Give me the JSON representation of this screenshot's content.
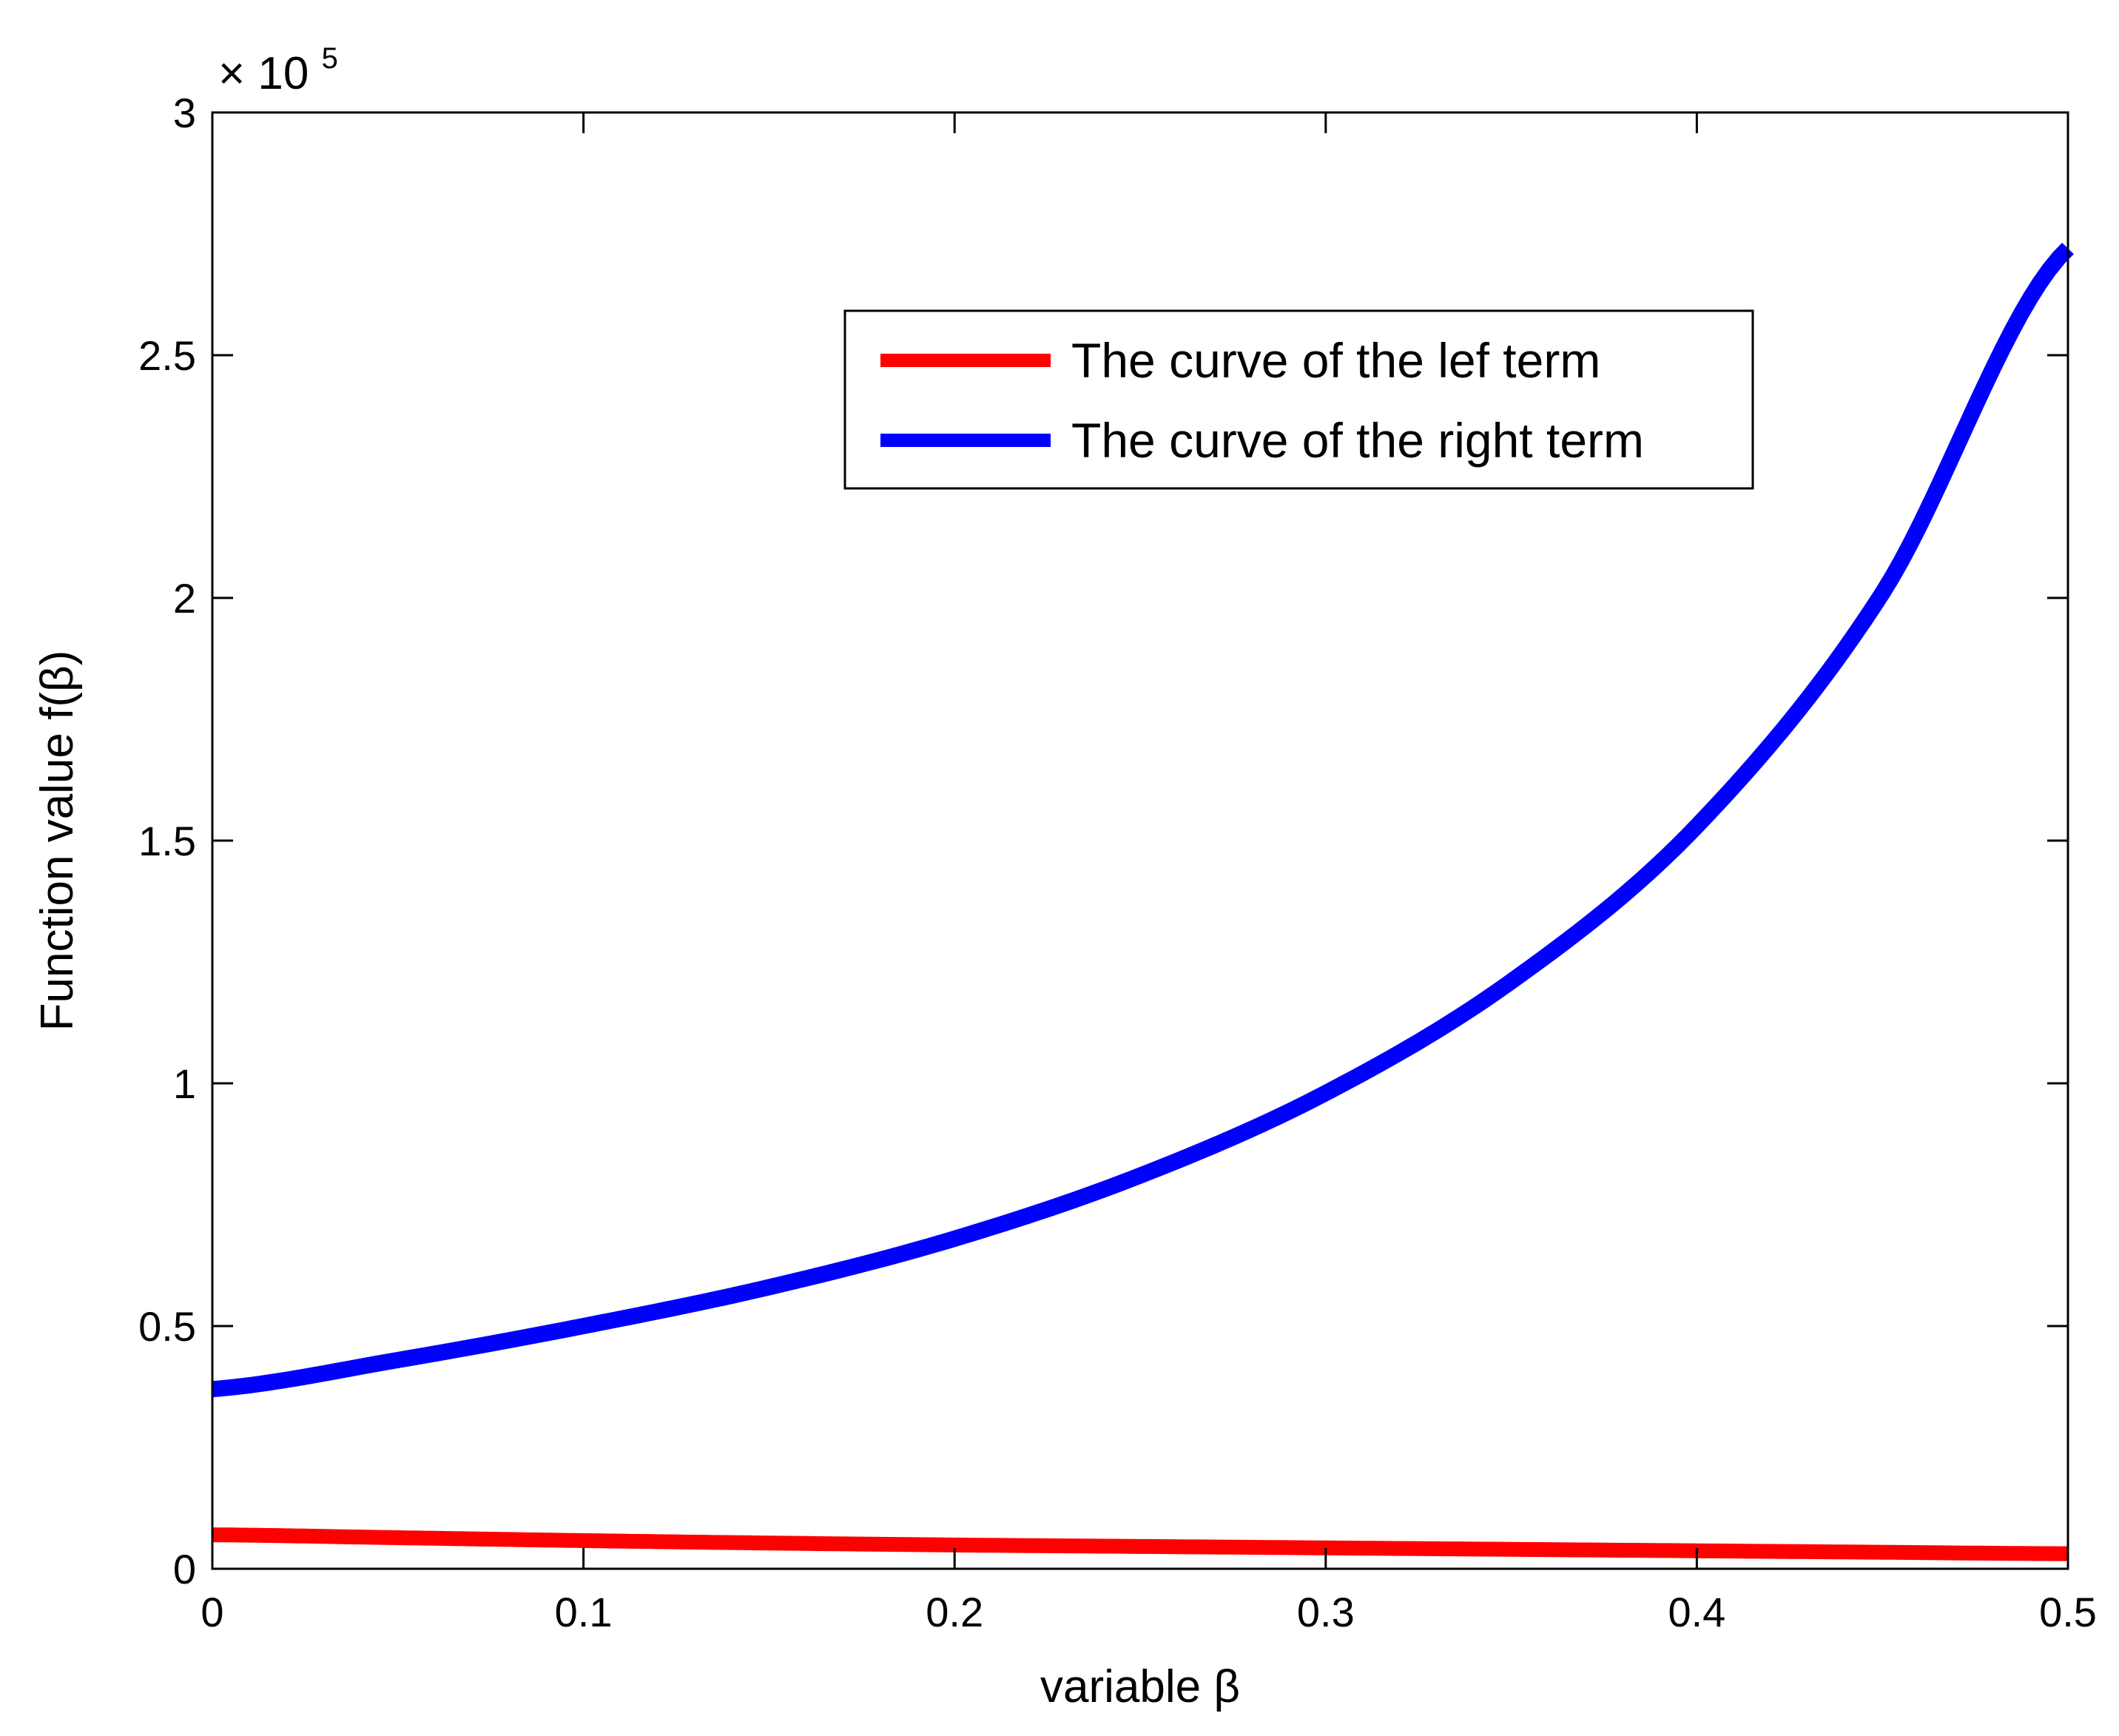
{
  "chart_data": {
    "type": "line",
    "title": "",
    "xlabel": "variable β",
    "ylabel": "Function value f(β)",
    "xlim": [
      0,
      0.5
    ],
    "ylim": [
      0,
      300000
    ],
    "x_ticks": [
      0,
      0.1,
      0.2,
      0.3,
      0.4,
      0.5
    ],
    "x_tick_labels": [
      "0",
      "0.1",
      "0.2",
      "0.3",
      "0.4",
      "0.5"
    ],
    "y_ticks": [
      0,
      50000,
      100000,
      150000,
      200000,
      250000,
      300000
    ],
    "y_tick_labels": [
      "0",
      "0.5",
      "1",
      "1.5",
      "2",
      "2.5",
      "3"
    ],
    "y_exponent": {
      "multiplier": "× 10",
      "power": "5"
    },
    "grid": false,
    "legend_position": "top-right",
    "x": [
      0,
      0.05,
      0.1,
      0.15,
      0.2,
      0.25,
      0.3,
      0.35,
      0.4,
      0.45,
      0.5
    ],
    "series": [
      {
        "name": "The curve of the lef term",
        "color": "#ff0000",
        "values": [
          7000,
          6400,
          5800,
          5300,
          4900,
          4600,
          4300,
          4000,
          3700,
          3400,
          3100
        ]
      },
      {
        "name": "The curve of the right term",
        "color": "#0000ff",
        "values": [
          37000,
          43000,
          50000,
          58000,
          68000,
          81000,
          98000,
          121000,
          153000,
          201000,
          272000
        ]
      }
    ]
  }
}
